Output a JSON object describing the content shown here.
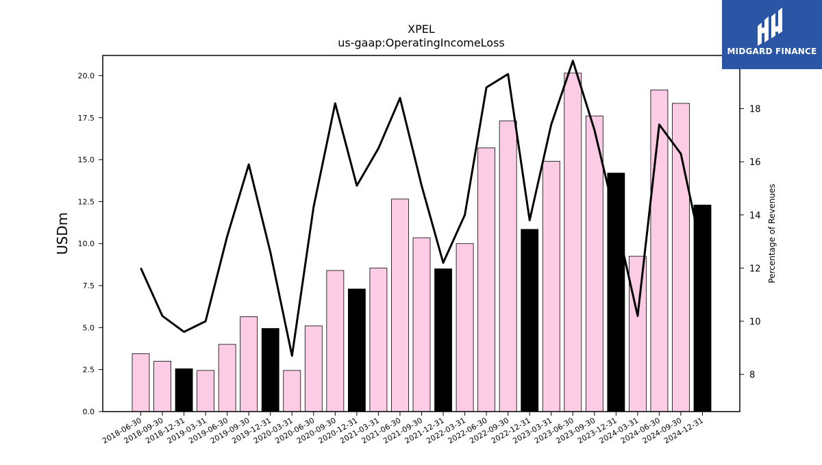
{
  "chart_data": {
    "type": "bar",
    "title": "XPEL",
    "subtitle": "us-gaap:OperatingIncomeLoss",
    "ylabel": "USDm",
    "y2label": "Percentage of Revenues",
    "ylim": [
      0,
      21.2
    ],
    "y2lim": [
      6.6,
      20.0
    ],
    "yticks": [
      "0.0",
      "2.5",
      "5.0",
      "7.5",
      "10.0",
      "12.5",
      "15.0",
      "17.5",
      "20.0"
    ],
    "y2ticks": [
      "8",
      "10",
      "12",
      "14",
      "16",
      "18"
    ],
    "categories": [
      "2018-06-30",
      "2018-09-30",
      "2018-12-31",
      "2019-03-31",
      "2019-06-30",
      "2019-09-30",
      "2019-12-31",
      "2020-03-31",
      "2020-06-30",
      "2020-09-30",
      "2020-12-31",
      "2021-03-31",
      "2021-06-30",
      "2021-09-30",
      "2021-12-31",
      "2022-03-31",
      "2022-06-30",
      "2022-09-30",
      "2022-12-31",
      "2023-03-31",
      "2023-06-30",
      "2023-09-30",
      "2023-12-31",
      "2024-03-31",
      "2024-06-30",
      "2024-09-30",
      "2024-12-31"
    ],
    "series": [
      {
        "kind": "bar",
        "values": [
          3.45,
          3.0,
          2.55,
          2.45,
          4.0,
          5.65,
          4.95,
          2.45,
          5.1,
          8.4,
          7.3,
          8.55,
          12.65,
          10.35,
          8.5,
          10.0,
          15.7,
          17.3,
          10.85,
          14.9,
          20.15,
          17.6,
          14.2,
          9.25,
          19.15,
          18.35,
          12.3
        ],
        "year_end_flags": [
          false,
          false,
          true,
          false,
          false,
          false,
          true,
          false,
          false,
          false,
          true,
          false,
          false,
          false,
          true,
          false,
          false,
          false,
          true,
          false,
          false,
          false,
          true,
          false,
          false,
          false,
          true
        ]
      },
      {
        "kind": "line",
        "values": [
          12.0,
          10.2,
          9.6,
          10.0,
          13.2,
          15.9,
          12.6,
          8.7,
          14.3,
          18.2,
          15.1,
          16.5,
          18.4,
          15.1,
          12.2,
          14.0,
          18.8,
          19.3,
          13.8,
          17.4,
          19.8,
          17.2,
          13.8,
          10.2,
          17.4,
          16.3,
          12.5
        ]
      }
    ],
    "colors": {
      "bar_default": "#fccce4",
      "bar_year_end": "#000000",
      "line": "#000000"
    },
    "grid": false,
    "legend": "none"
  },
  "branding": {
    "logo_text": "MIDGARD FINANCE",
    "logo_color": "#2b56a6"
  }
}
